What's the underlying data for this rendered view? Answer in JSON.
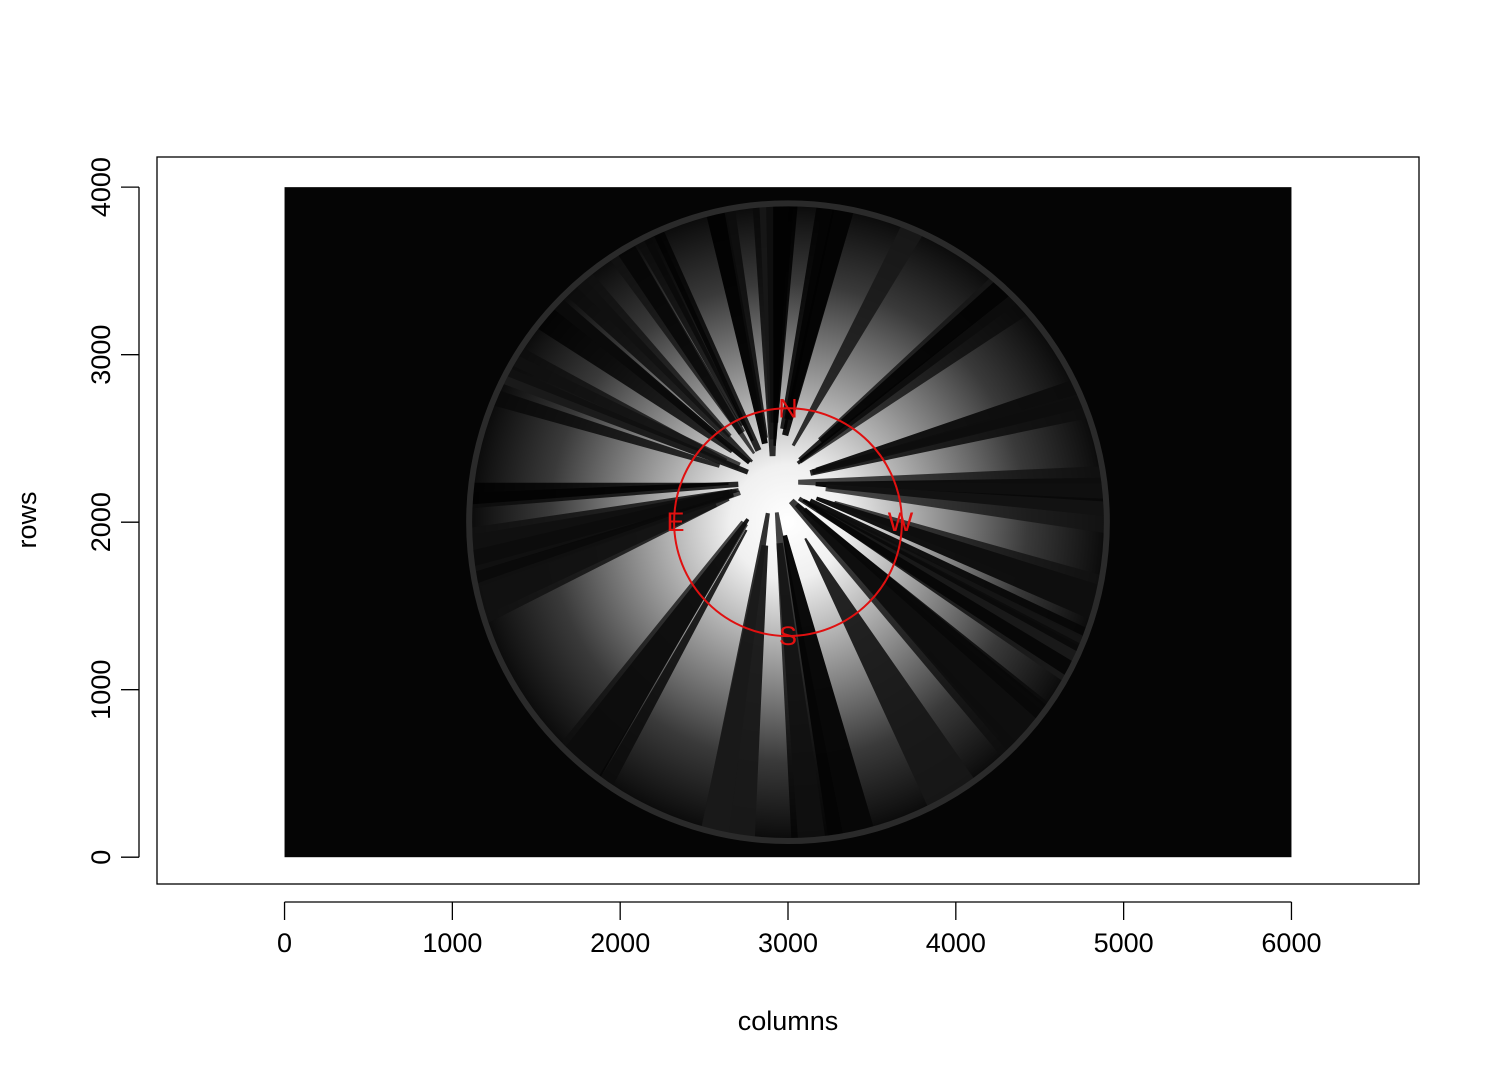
{
  "chart_data": {
    "type": "image",
    "xlabel": "columns",
    "ylabel": "rows",
    "xlim": [
      -760,
      6760
    ],
    "ylim": [
      -160,
      4180
    ],
    "x_ticks": [
      0,
      1000,
      2000,
      3000,
      4000,
      5000,
      6000
    ],
    "y_ticks": [
      0,
      1000,
      2000,
      3000,
      4000
    ],
    "image_extent": {
      "x": [
        0,
        6000
      ],
      "y": [
        0,
        4000
      ]
    },
    "fisheye_circle": {
      "cx": 3000,
      "cy": 2000,
      "r": 1900
    },
    "compass_circle": {
      "cx": 3000,
      "cy": 2000,
      "r": 680,
      "color": "#e01010"
    },
    "compass_labels": [
      {
        "text": "N",
        "x": 3000,
        "y": 2680
      },
      {
        "text": "E",
        "x": 2330,
        "y": 2000
      },
      {
        "text": "W",
        "x": 3670,
        "y": 2000
      },
      {
        "text": "S",
        "x": 3000,
        "y": 1320
      }
    ]
  }
}
